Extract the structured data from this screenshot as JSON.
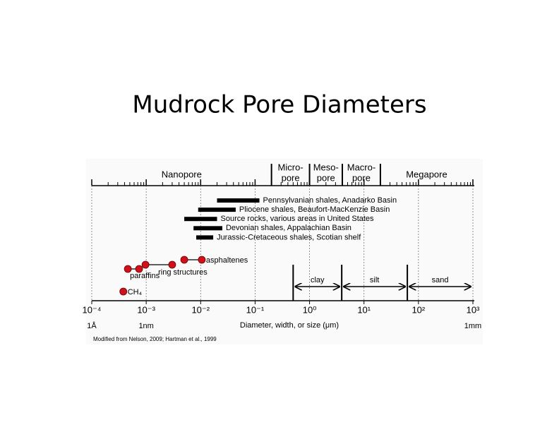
{
  "title": "Mudrock Pore Diameters",
  "chart_data": {
    "type": "range",
    "xlabel": "Diameter, width, or size (μm)",
    "source": "Modified from Nelson, 2009; Hartman et al., 1999",
    "log_x": true,
    "minor_ticks": true,
    "grid": true,
    "xlim": [
      0.0001,
      1000
    ],
    "xticks": [
      {
        "value": 0.0001,
        "label": "10⁻⁴"
      },
      {
        "value": 0.001,
        "label": "10⁻³"
      },
      {
        "value": 0.01,
        "label": "10⁻²"
      },
      {
        "value": 0.1,
        "label": "10⁻¹"
      },
      {
        "value": 1,
        "label": "10⁰"
      },
      {
        "value": 10,
        "label": "10¹"
      },
      {
        "value": 100,
        "label": "10²"
      },
      {
        "value": 1000,
        "label": "10³"
      }
    ],
    "scale_labels": [
      {
        "value": 0.0001,
        "label": "1Å"
      },
      {
        "value": 0.001,
        "label": "1nm"
      },
      {
        "value": 1000,
        "label": "1mm"
      }
    ],
    "pore_classes": {
      "names": [
        [
          "Nanopore"
        ],
        [
          "Micro-",
          "pore"
        ],
        [
          "Meso-",
          "pore"
        ],
        [
          "Macro-",
          "pore"
        ],
        [
          "Megapore"
        ]
      ],
      "boundaries": [
        0.2,
        1,
        4,
        20
      ]
    },
    "shales": {
      "color": "#000000",
      "series": [
        {
          "name": "Pennsylvanian shales, Anadarko Basin",
          "values": [
            0.02,
            0.12
          ]
        },
        {
          "name": "Pliocene shales, Beaufort-MacKenzie Basin",
          "values": [
            0.009,
            0.044
          ]
        },
        {
          "name": "Source rocks, various areas in United States",
          "values": [
            0.005,
            0.02
          ]
        },
        {
          "name": "Devonian shales, Appalachian Basin",
          "values": [
            0.0074,
            0.025
          ]
        },
        {
          "name": "Jurassic-Cretaceous shales, Scotian shelf",
          "values": [
            0.0083,
            0.017
          ]
        }
      ]
    },
    "molecules": {
      "color": "#d0101a",
      "series": [
        {
          "name": "paraffins",
          "values": [
            0.00046,
            0.00074
          ]
        },
        {
          "name": "ring structures",
          "values": [
            0.00097,
            0.003
          ]
        },
        {
          "name": "asphaltenes",
          "values": [
            0.005,
            0.0105
          ]
        },
        {
          "name": "CH₄",
          "values": [
            0.00038
          ]
        }
      ]
    },
    "grain_sizes": {
      "categories": [
        "clay",
        "silt",
        "sand"
      ],
      "boundaries": [
        0.5,
        3.9,
        62.5,
        1000
      ]
    }
  }
}
